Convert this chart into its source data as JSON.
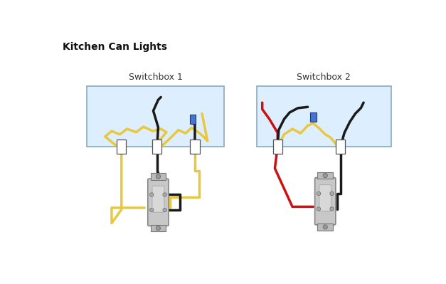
{
  "title": "Kitchen Can Lights",
  "title_fontsize": 10,
  "title_fontweight": "bold",
  "bg_color": "#ffffff",
  "switchbox1_label": "Switchbox 1",
  "switchbox2_label": "Switchbox 2",
  "switchbox_facecolor": "#ddeeff",
  "switchbox_edgecolor": "#88aabb",
  "wire_yellow": "#e8c840",
  "wire_black": "#1a1a1a",
  "wire_red": "#cc1111",
  "connector_blue": "#4477cc",
  "lw": 2.5
}
